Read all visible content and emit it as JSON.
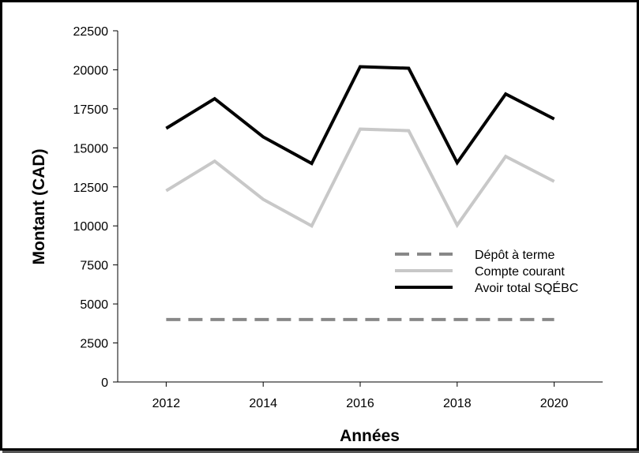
{
  "chart_data": {
    "type": "line",
    "xlabel": "Années",
    "ylabel": "Montant (CAD)",
    "xlim": [
      2011,
      2021
    ],
    "ylim": [
      0,
      22500
    ],
    "x_ticks": [
      2012,
      2014,
      2016,
      2018,
      2020
    ],
    "y_ticks": [
      0,
      2500,
      5000,
      7500,
      10000,
      12500,
      15000,
      17500,
      20000,
      22500
    ],
    "x": [
      2012,
      2013,
      2014,
      2015,
      2016,
      2017,
      2018,
      2019,
      2020
    ],
    "grid": false,
    "legend_position": "right",
    "series": [
      {
        "name": "Dépôt à terme",
        "color": "#888888",
        "style": "dashed",
        "values": [
          4000,
          4000,
          4000,
          4000,
          4000,
          4000,
          4000,
          4000,
          4000
        ]
      },
      {
        "name": "Compte courant",
        "color": "#c8c8c8",
        "style": "solid",
        "values": [
          12250,
          14150,
          11700,
          10000,
          16200,
          16100,
          10050,
          14450,
          12850
        ]
      },
      {
        "name": "Avoir total SQÉBC",
        "color": "#000000",
        "style": "solid",
        "values": [
          16250,
          18150,
          15700,
          14000,
          20200,
          20100,
          14050,
          18450,
          16850
        ]
      }
    ]
  }
}
